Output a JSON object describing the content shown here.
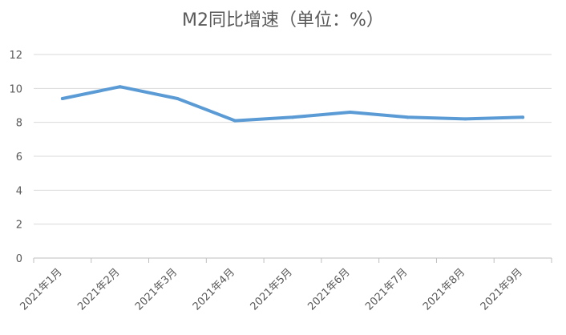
{
  "chart_data": {
    "type": "line",
    "title": "M2同比增速（单位：%）",
    "xlabel": "",
    "ylabel": "",
    "categories": [
      "2021年1月",
      "2021年2月",
      "2021年3月",
      "2021年4月",
      "2021年5月",
      "2021年6月",
      "2021年7月",
      "2021年8月",
      "2021年9月"
    ],
    "series": [
      {
        "values": [
          9.4,
          10.1,
          9.4,
          8.1,
          8.3,
          8.6,
          8.3,
          8.2,
          8.3
        ],
        "color": "#5b9bd5"
      }
    ],
    "ylim": [
      0,
      12
    ],
    "yticks": [
      "0",
      "2",
      "4",
      "6",
      "8",
      "10",
      "12"
    ],
    "grid": true,
    "legend": "none"
  }
}
